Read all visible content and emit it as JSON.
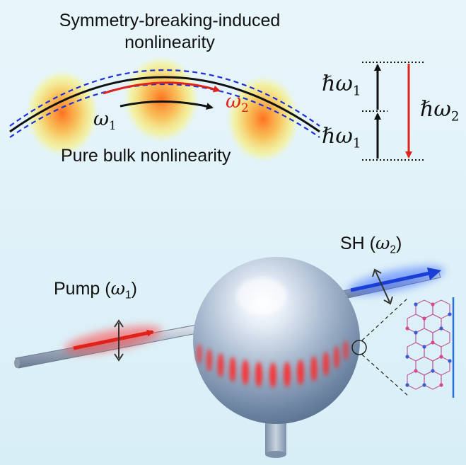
{
  "top_left": {
    "title_line1": "Symmetry-breaking-induced",
    "title_line2": "nonlinearity",
    "bottom_label": "Pure bulk nonlinearity",
    "omega1_symbol": "ω",
    "omega1_sub": "1",
    "omega2_symbol": "ω",
    "omega2_sub": "2"
  },
  "energy_diagram": {
    "photon1_upper_symbol": "ℏω",
    "photon1_upper_sub": "1",
    "photon1_lower_symbol": "ℏω",
    "photon1_lower_sub": "1",
    "photon2_symbol": "ℏω",
    "photon2_sub": "2"
  },
  "bottom": {
    "pump_text": "Pump (",
    "pump_symbol": "ω",
    "pump_sub": "1",
    "pump_close": ")",
    "sh_text": "SH (",
    "sh_symbol": "ω",
    "sh_sub": "2",
    "sh_close": ")"
  },
  "colors": {
    "pump": "#e0231a",
    "sh": "#1a3fd6",
    "guide_dash": "#1c2fd8",
    "mode_core": "#ff7a1a",
    "mode_edge": "#ffe93a"
  }
}
